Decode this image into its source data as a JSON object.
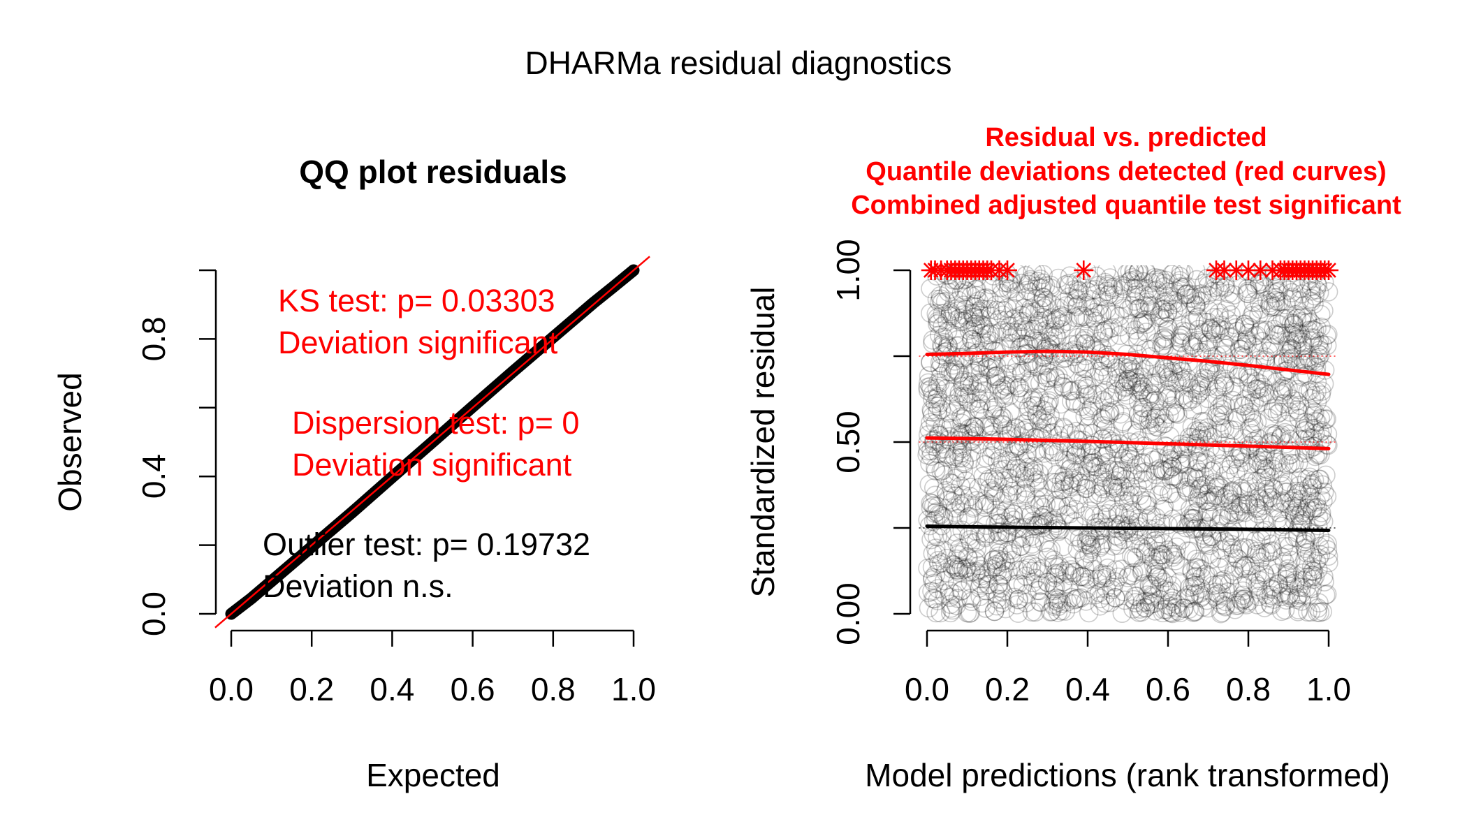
{
  "figure_title": "DHARMa residual diagnostics",
  "colors": {
    "reference_line": "#ff0000",
    "points": "#000000",
    "quantile_fail": "#ff0000",
    "quantile_ok": "#000000",
    "test_text_significant": "#ff0000",
    "test_text_ok": "#000000"
  },
  "chart_data": [
    {
      "type": "scatter",
      "title": "QQ plot residuals",
      "xlabel": "Expected",
      "ylabel": "Observed",
      "xlim": [
        0,
        1
      ],
      "ylim": [
        0,
        1
      ],
      "x_ticks": [
        "0.0",
        "0.2",
        "0.4",
        "0.6",
        "0.8",
        "1.0"
      ],
      "y_ticks": [
        "0.0",
        "0.4",
        "0.8"
      ],
      "grid": false,
      "reference_line": {
        "from": [
          0,
          0
        ],
        "to": [
          1,
          1
        ]
      },
      "qq_curve": {
        "x": [
          0.0,
          0.05,
          0.1,
          0.2,
          0.3,
          0.4,
          0.5,
          0.6,
          0.7,
          0.8,
          0.9,
          0.95,
          1.0
        ],
        "y": [
          0.0,
          0.045,
          0.095,
          0.195,
          0.295,
          0.398,
          0.5,
          0.603,
          0.705,
          0.805,
          0.905,
          0.952,
          1.0
        ]
      },
      "tests": [
        {
          "line1": "KS test: p= 0.03303",
          "line2": "Deviation  significant",
          "significant": true
        },
        {
          "line1": "Dispersion test: p= 0",
          "line2": "Deviation  significant",
          "significant": true
        },
        {
          "line1": "Outlier test: p= 0.19732",
          "line2": "Deviation  n.s.",
          "significant": false
        }
      ]
    },
    {
      "type": "scatter",
      "title_lines": [
        "Residual vs. predicted",
        "Quantile deviations detected (red curves)",
        "Combined adjusted quantile test significant"
      ],
      "xlabel": "Model predictions (rank transformed)",
      "ylabel": "Standardized residual",
      "xlim": [
        0,
        1
      ],
      "ylim": [
        0,
        1
      ],
      "x_ticks": [
        "0.0",
        "0.2",
        "0.4",
        "0.6",
        "0.8",
        "1.0"
      ],
      "y_ticks": [
        "0.00",
        "0.50",
        "1.00"
      ],
      "grid": false,
      "reference_levels": [
        0.25,
        0.5,
        0.75
      ],
      "quantile_curves": [
        {
          "quantile": 0.75,
          "significant": true,
          "x": [
            0.0,
            0.1,
            0.2,
            0.3,
            0.4,
            0.5,
            0.6,
            0.7,
            0.8,
            0.9,
            1.0
          ],
          "y": [
            0.755,
            0.758,
            0.762,
            0.764,
            0.762,
            0.755,
            0.745,
            0.735,
            0.723,
            0.71,
            0.697
          ]
        },
        {
          "quantile": 0.5,
          "significant": true,
          "x": [
            0.0,
            0.2,
            0.4,
            0.6,
            0.8,
            1.0
          ],
          "y": [
            0.512,
            0.508,
            0.502,
            0.495,
            0.488,
            0.481
          ]
        },
        {
          "quantile": 0.25,
          "significant": false,
          "x": [
            0.0,
            0.2,
            0.4,
            0.6,
            0.8,
            1.0
          ],
          "y": [
            0.255,
            0.252,
            0.25,
            0.248,
            0.246,
            0.243
          ]
        }
      ],
      "outliers_at_1": [
        0.01,
        0.02,
        0.035,
        0.05,
        0.06,
        0.07,
        0.08,
        0.09,
        0.1,
        0.11,
        0.12,
        0.13,
        0.14,
        0.15,
        0.16,
        0.18,
        0.2,
        0.39,
        0.72,
        0.74,
        0.77,
        0.8,
        0.83,
        0.86,
        0.88,
        0.89,
        0.9,
        0.91,
        0.92,
        0.93,
        0.94,
        0.95,
        0.96,
        0.97,
        0.98,
        0.99,
        1.0
      ]
    }
  ]
}
